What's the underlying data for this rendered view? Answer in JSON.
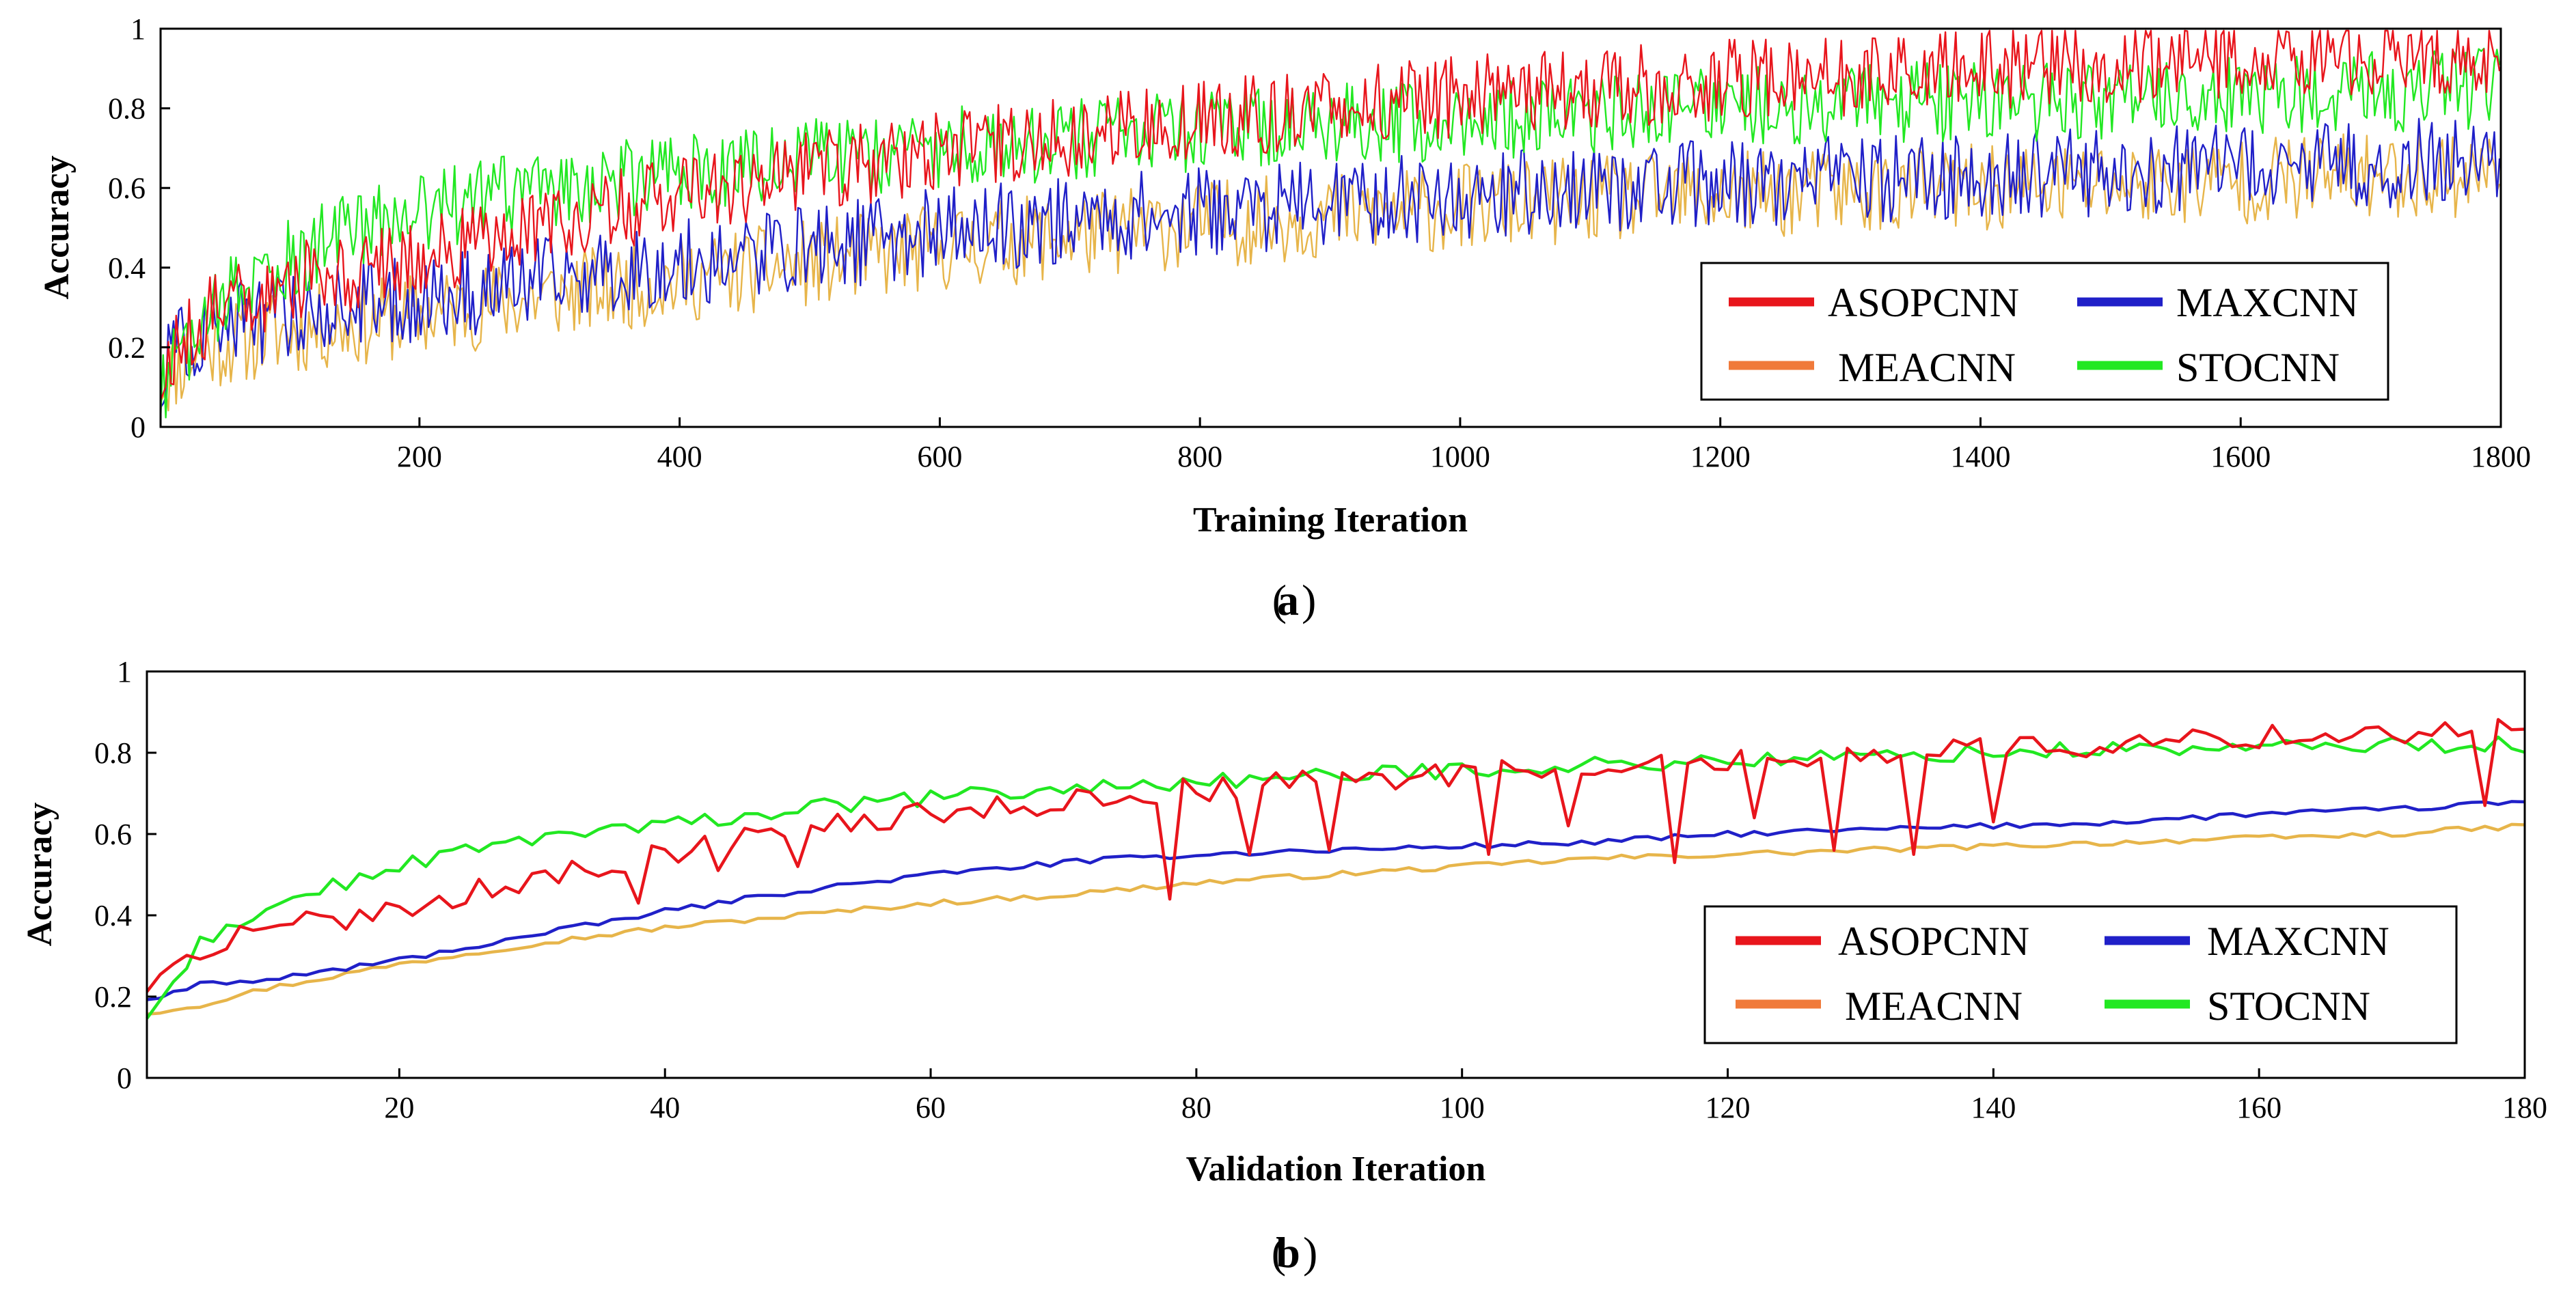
{
  "figure": {
    "panels": [
      {
        "id": "a",
        "caption_letter": "a"
      },
      {
        "id": "b",
        "caption_letter": "b"
      }
    ]
  },
  "colors": {
    "ASOPCNN": "#e8151c",
    "MAXCNN": "#2020c8",
    "MEACNN": "#e7b54a",
    "MEACNN_legend": "#f07a3a",
    "STOCNN": "#22e822"
  },
  "chart_data": [
    {
      "type": "line",
      "panel": "a",
      "xlabel": "Training Iteration",
      "ylabel": "Accuracy",
      "xlim": [
        1,
        1800
      ],
      "ylim": [
        0,
        1
      ],
      "xticks": [
        200,
        400,
        600,
        800,
        1000,
        1200,
        1400,
        1600,
        1800
      ],
      "yticks": [
        0,
        0.2,
        0.4,
        0.6,
        0.8,
        1
      ],
      "ytick_labels": [
        "0",
        "0.2",
        "0.4",
        "0.6",
        "0.8",
        "1"
      ],
      "legend": {
        "position": "bottom-right",
        "entries": [
          "ASOPCNN",
          "MAXCNN",
          "MEACNN",
          "STOCNN"
        ]
      },
      "x": [
        1,
        25,
        50,
        100,
        150,
        200,
        300,
        400,
        500,
        600,
        700,
        800,
        900,
        1000,
        1100,
        1200,
        1300,
        1400,
        1500,
        1600,
        1700,
        1800
      ],
      "series": [
        {
          "name": "ASOPCNN",
          "noise": 0.06,
          "values": [
            0.17,
            0.25,
            0.3,
            0.36,
            0.39,
            0.42,
            0.51,
            0.58,
            0.64,
            0.69,
            0.73,
            0.77,
            0.8,
            0.83,
            0.85,
            0.87,
            0.88,
            0.9,
            0.91,
            0.92,
            0.93,
            0.94
          ]
        },
        {
          "name": "STOCNN",
          "noise": 0.06,
          "values": [
            0.1,
            0.22,
            0.32,
            0.42,
            0.5,
            0.54,
            0.6,
            0.64,
            0.67,
            0.7,
            0.72,
            0.74,
            0.76,
            0.77,
            0.78,
            0.8,
            0.81,
            0.82,
            0.82,
            0.83,
            0.84,
            0.85
          ]
        },
        {
          "name": "MAXCNN",
          "noise": 0.065,
          "values": [
            0.15,
            0.22,
            0.25,
            0.28,
            0.3,
            0.32,
            0.37,
            0.41,
            0.45,
            0.49,
            0.52,
            0.54,
            0.56,
            0.58,
            0.6,
            0.61,
            0.62,
            0.63,
            0.64,
            0.65,
            0.66,
            0.67
          ]
        },
        {
          "name": "MEACNN",
          "noise": 0.065,
          "values": [
            0.12,
            0.18,
            0.21,
            0.24,
            0.26,
            0.28,
            0.33,
            0.37,
            0.41,
            0.45,
            0.48,
            0.51,
            0.53,
            0.55,
            0.57,
            0.58,
            0.59,
            0.6,
            0.61,
            0.62,
            0.63,
            0.64
          ]
        }
      ]
    },
    {
      "type": "line",
      "panel": "b",
      "xlabel": "Validation Iteration",
      "ylabel": "Accuracy",
      "xlim": [
        1,
        180
      ],
      "ylim": [
        0,
        1
      ],
      "xticks": [
        20,
        40,
        60,
        80,
        100,
        120,
        140,
        160,
        180
      ],
      "yticks": [
        0,
        0.2,
        0.4,
        0.6,
        0.8,
        1
      ],
      "ytick_labels": [
        "0",
        "0.2",
        "0.4",
        "0.6",
        "0.8",
        "1"
      ],
      "legend": {
        "position": "bottom-right",
        "entries": [
          "ASOPCNN",
          "MAXCNN",
          "MEACNN",
          "STOCNN"
        ]
      },
      "x": [
        1,
        5,
        10,
        20,
        30,
        40,
        50,
        60,
        70,
        80,
        90,
        100,
        110,
        120,
        130,
        140,
        150,
        160,
        170,
        175,
        180
      ],
      "series": [
        {
          "name": "ASOPCNN",
          "noise": 0.018,
          "values": [
            0.2,
            0.32,
            0.36,
            0.42,
            0.49,
            0.55,
            0.61,
            0.65,
            0.68,
            0.71,
            0.73,
            0.75,
            0.77,
            0.78,
            0.8,
            0.81,
            0.82,
            0.84,
            0.85,
            0.86,
            0.86
          ],
          "dips": [
            [
              38,
              0.43
            ],
            [
              44,
              0.51
            ],
            [
              50,
              0.52
            ],
            [
              78,
              0.44
            ],
            [
              84,
              0.55
            ],
            [
              90,
              0.56
            ],
            [
              102,
              0.55
            ],
            [
              108,
              0.62
            ],
            [
              116,
              0.53
            ],
            [
              122,
              0.64
            ],
            [
              128,
              0.56
            ],
            [
              134,
              0.55
            ],
            [
              140,
              0.63
            ],
            [
              177,
              0.67
            ]
          ]
        },
        {
          "name": "STOCNN",
          "noise": 0.012,
          "values": [
            0.14,
            0.33,
            0.42,
            0.52,
            0.59,
            0.62,
            0.66,
            0.69,
            0.71,
            0.73,
            0.74,
            0.76,
            0.77,
            0.78,
            0.79,
            0.8,
            0.81,
            0.81,
            0.82,
            0.82,
            0.82
          ]
        },
        {
          "name": "MAXCNN",
          "noise": 0.004,
          "values": [
            0.19,
            0.23,
            0.24,
            0.29,
            0.35,
            0.41,
            0.46,
            0.5,
            0.53,
            0.55,
            0.56,
            0.57,
            0.58,
            0.6,
            0.61,
            0.62,
            0.63,
            0.65,
            0.66,
            0.67,
            0.68
          ]
        },
        {
          "name": "MEACNN",
          "noise": 0.004,
          "values": [
            0.16,
            0.18,
            0.22,
            0.28,
            0.33,
            0.37,
            0.4,
            0.43,
            0.45,
            0.48,
            0.5,
            0.52,
            0.54,
            0.55,
            0.56,
            0.57,
            0.58,
            0.59,
            0.6,
            0.61,
            0.62
          ]
        }
      ]
    }
  ]
}
